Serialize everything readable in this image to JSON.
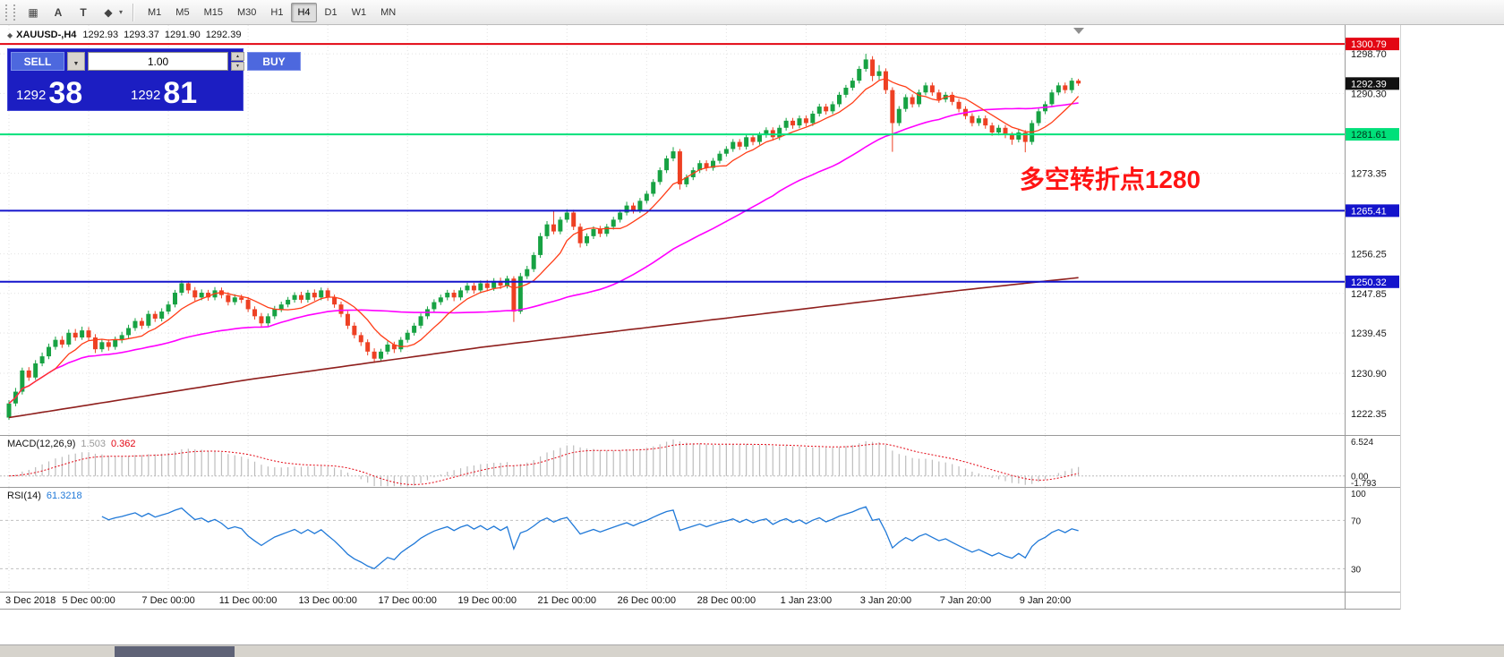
{
  "toolbar": {
    "tools": [
      {
        "name": "grid-icon",
        "glyph": "▦"
      },
      {
        "name": "text-a-icon",
        "glyph": "A"
      },
      {
        "name": "text-t-icon",
        "glyph": "T"
      },
      {
        "name": "shapes-icon",
        "glyph": "◆"
      }
    ],
    "shapes_caret": "▾",
    "timeframes": [
      "M1",
      "M5",
      "M15",
      "M30",
      "H1",
      "H4",
      "D1",
      "W1",
      "MN"
    ],
    "active_timeframe": "H4"
  },
  "chart_header": {
    "symbol_period": "XAUUSD-,H4",
    "open": "1292.93",
    "high": "1293.37",
    "low": "1291.90",
    "close": "1292.39"
  },
  "trade_panel": {
    "sell_label": "SELL",
    "buy_label": "BUY",
    "volume": "1.00",
    "sell_big_figure": "1292",
    "sell_pips": "38",
    "buy_big_figure": "1292",
    "buy_pips": "81",
    "panel_color": "#1c1ec2",
    "button_color": "#4d68de"
  },
  "indicators": {
    "macd": {
      "name": "MACD(12,26,9)",
      "value_main": "1.503",
      "value_signal": "0.362",
      "axis": [
        "6.524",
        "0.00",
        "-1.793"
      ]
    },
    "rsi": {
      "name": "RSI(14)",
      "value": "61.3218",
      "axis": [
        "100",
        "70",
        "30"
      ]
    }
  },
  "chart_data": {
    "type": "candlestick",
    "symbol": "XAUUSD-",
    "timeframe": "H4",
    "title": "XAUUSD-,H4 1292.93 1293.37 1291.90 1292.39",
    "y_axis": {
      "max": 1304.8,
      "min": 1217.8,
      "ticks": [
        1298.7,
        1290.3,
        1273.35,
        1256.25,
        1247.85,
        1239.45,
        1230.9,
        1222.35
      ]
    },
    "x_labels": [
      "3 Dec 2018",
      "5 Dec 00:00",
      "7 Dec 00:00",
      "11 Dec 00:00",
      "13 Dec 00:00",
      "17 Dec 00:00",
      "19 Dec 00:00",
      "21 Dec 00:00",
      "26 Dec 00:00",
      "28 Dec 00:00",
      "1 Jan 23:00",
      "3 Jan 20:00",
      "7 Jan 20:00",
      "9 Jan 20:00"
    ],
    "x_label_step": 12,
    "current_price": 1292.39,
    "levels": [
      {
        "price": 1300.79,
        "label": "1300.79",
        "color": "#e30613",
        "text_color": "#ffffff"
      },
      {
        "price": 1281.61,
        "label": "1281.61",
        "color": "#00e07a",
        "text_color": "#00331a"
      },
      {
        "price": 1265.41,
        "label": "1265.41",
        "color": "#1414cc",
        "text_color": "#ffffff"
      },
      {
        "price": 1250.32,
        "label": "1250.32",
        "color": "#1414cc",
        "text_color": "#ffffff"
      }
    ],
    "annotation": {
      "text": "多空转折点1280",
      "color": "#ff1414"
    },
    "colors": {
      "up": "#17a243",
      "down": "#ee4023",
      "ma_fast": "#ff3d17",
      "ma_mid": "#ff00ff",
      "ma_slow": "#8f1f1d",
      "macd_hist": "#bdbdbd",
      "macd_signal": "#e30613",
      "rsi": "#2079d8",
      "grid": "#e2e2e2"
    },
    "ma": {
      "fast_period": 8,
      "mid_period": 40,
      "slow_anchors": [
        1221.5,
        1225.5,
        1229.5,
        1233.0,
        1236.5,
        1239.5,
        1242.5,
        1245.5,
        1248.5,
        1251.2
      ]
    },
    "macd": {
      "fast": 12,
      "slow": 26,
      "signal": 9,
      "scale_max": 6.524,
      "scale_min": -1.793
    },
    "rsi": {
      "period": 14,
      "levels": [
        70,
        30
      ],
      "scale_max": 97,
      "scale_min": 11
    },
    "candles": [
      [
        1221.5,
        1225.2,
        1221.0,
        1224.5
      ],
      [
        1224.5,
        1227.8,
        1223.9,
        1227.0
      ],
      [
        1227.0,
        1232.1,
        1226.4,
        1231.5
      ],
      [
        1231.5,
        1232.2,
        1229.3,
        1230.0
      ],
      [
        1230.0,
        1233.7,
        1229.5,
        1233.0
      ],
      [
        1233.0,
        1235.3,
        1232.4,
        1234.5
      ],
      [
        1234.5,
        1237.2,
        1233.9,
        1236.5
      ],
      [
        1236.5,
        1238.7,
        1235.9,
        1238.0
      ],
      [
        1238.0,
        1238.8,
        1236.3,
        1237.0
      ],
      [
        1237.0,
        1240.2,
        1236.5,
        1239.5
      ],
      [
        1239.5,
        1240.3,
        1237.8,
        1238.5
      ],
      [
        1238.5,
        1240.8,
        1238.0,
        1240.0
      ],
      [
        1240.0,
        1240.7,
        1237.8,
        1238.5
      ],
      [
        1238.5,
        1239.2,
        1235.2,
        1236.0
      ],
      [
        1236.0,
        1238.2,
        1235.4,
        1237.5
      ],
      [
        1237.5,
        1238.1,
        1235.7,
        1236.5
      ],
      [
        1236.5,
        1238.7,
        1235.9,
        1238.0
      ],
      [
        1238.0,
        1239.7,
        1237.3,
        1239.0
      ],
      [
        1239.0,
        1241.2,
        1238.4,
        1240.5
      ],
      [
        1240.5,
        1242.6,
        1239.9,
        1242.0
      ],
      [
        1242.0,
        1242.7,
        1240.3,
        1241.0
      ],
      [
        1241.0,
        1244.2,
        1240.5,
        1243.5
      ],
      [
        1243.5,
        1244.1,
        1241.8,
        1242.5
      ],
      [
        1242.5,
        1244.7,
        1241.9,
        1244.0
      ],
      [
        1244.0,
        1246.2,
        1243.4,
        1245.5
      ],
      [
        1245.5,
        1248.6,
        1244.9,
        1248.0
      ],
      [
        1248.0,
        1250.6,
        1247.4,
        1250.0
      ],
      [
        1250.0,
        1250.5,
        1247.8,
        1248.5
      ],
      [
        1248.5,
        1249.2,
        1246.3,
        1247.0
      ],
      [
        1247.0,
        1248.7,
        1246.4,
        1248.0
      ],
      [
        1248.0,
        1248.6,
        1246.3,
        1247.0
      ],
      [
        1247.0,
        1249.2,
        1246.4,
        1248.5
      ],
      [
        1248.5,
        1249.1,
        1246.8,
        1247.5
      ],
      [
        1247.5,
        1248.1,
        1245.3,
        1246.0
      ],
      [
        1246.0,
        1247.7,
        1245.4,
        1247.0
      ],
      [
        1247.0,
        1247.6,
        1245.8,
        1246.5
      ],
      [
        1246.5,
        1247.1,
        1243.9,
        1244.5
      ],
      [
        1244.5,
        1245.1,
        1242.3,
        1243.0
      ],
      [
        1243.0,
        1243.7,
        1240.8,
        1241.5
      ],
      [
        1241.5,
        1243.6,
        1240.9,
        1243.0
      ],
      [
        1243.0,
        1245.2,
        1242.4,
        1244.5
      ],
      [
        1244.5,
        1246.1,
        1243.9,
        1245.5
      ],
      [
        1245.5,
        1247.1,
        1244.9,
        1246.5
      ],
      [
        1246.5,
        1248.1,
        1245.9,
        1247.5
      ],
      [
        1247.5,
        1248.2,
        1245.8,
        1246.5
      ],
      [
        1246.5,
        1248.6,
        1245.9,
        1248.0
      ],
      [
        1248.0,
        1248.7,
        1246.3,
        1247.0
      ],
      [
        1247.0,
        1249.1,
        1246.4,
        1248.5
      ],
      [
        1248.5,
        1249.0,
        1246.3,
        1247.0
      ],
      [
        1247.0,
        1247.6,
        1244.8,
        1245.5
      ],
      [
        1245.5,
        1246.1,
        1242.8,
        1243.5
      ],
      [
        1243.5,
        1244.1,
        1240.3,
        1241.0
      ],
      [
        1241.0,
        1241.7,
        1238.3,
        1239.0
      ],
      [
        1239.0,
        1239.6,
        1236.7,
        1237.5
      ],
      [
        1237.5,
        1238.1,
        1234.7,
        1235.5
      ],
      [
        1235.5,
        1236.2,
        1233.1,
        1234.0
      ],
      [
        1234.0,
        1236.1,
        1233.4,
        1235.5
      ],
      [
        1235.5,
        1237.7,
        1234.9,
        1237.0
      ],
      [
        1237.0,
        1237.6,
        1235.2,
        1236.0
      ],
      [
        1236.0,
        1238.6,
        1235.4,
        1238.0
      ],
      [
        1238.0,
        1240.1,
        1237.4,
        1239.5
      ],
      [
        1239.5,
        1241.6,
        1238.9,
        1241.0
      ],
      [
        1241.0,
        1243.6,
        1240.4,
        1243.0
      ],
      [
        1243.0,
        1245.1,
        1242.4,
        1244.5
      ],
      [
        1244.5,
        1246.6,
        1243.9,
        1246.0
      ],
      [
        1246.0,
        1247.6,
        1245.4,
        1247.0
      ],
      [
        1247.0,
        1248.6,
        1246.4,
        1248.0
      ],
      [
        1248.0,
        1248.6,
        1246.2,
        1247.0
      ],
      [
        1247.0,
        1249.1,
        1246.4,
        1248.5
      ],
      [
        1248.5,
        1250.1,
        1247.9,
        1249.5
      ],
      [
        1249.5,
        1250.1,
        1247.8,
        1248.5
      ],
      [
        1248.5,
        1250.6,
        1247.9,
        1250.0
      ],
      [
        1250.0,
        1250.7,
        1248.3,
        1249.0
      ],
      [
        1249.0,
        1251.1,
        1248.4,
        1250.5
      ],
      [
        1250.5,
        1251.2,
        1248.8,
        1249.5
      ],
      [
        1249.5,
        1251.6,
        1248.9,
        1251.0
      ],
      [
        1251.0,
        1251.5,
        1241.8,
        1244.0
      ],
      [
        1244.0,
        1252.2,
        1243.5,
        1251.5
      ],
      [
        1251.5,
        1253.7,
        1250.9,
        1253.0
      ],
      [
        1253.0,
        1256.6,
        1252.4,
        1256.0
      ],
      [
        1256.0,
        1260.7,
        1255.4,
        1260.0
      ],
      [
        1260.0,
        1263.2,
        1259.4,
        1262.5
      ],
      [
        1262.5,
        1265.3,
        1260.4,
        1261.0
      ],
      [
        1261.0,
        1264.1,
        1260.4,
        1263.5
      ],
      [
        1263.5,
        1265.7,
        1262.9,
        1265.0
      ],
      [
        1265.0,
        1265.6,
        1261.3,
        1262.0
      ],
      [
        1262.0,
        1262.7,
        1257.6,
        1258.5
      ],
      [
        1258.5,
        1260.6,
        1257.9,
        1260.0
      ],
      [
        1260.0,
        1262.1,
        1259.4,
        1261.5
      ],
      [
        1261.5,
        1262.2,
        1259.8,
        1260.5
      ],
      [
        1260.5,
        1262.6,
        1259.9,
        1262.0
      ],
      [
        1262.0,
        1264.1,
        1261.4,
        1263.5
      ],
      [
        1263.5,
        1265.6,
        1262.9,
        1265.0
      ],
      [
        1265.0,
        1267.3,
        1264.4,
        1266.5
      ],
      [
        1266.5,
        1267.1,
        1264.8,
        1265.5
      ],
      [
        1265.5,
        1268.1,
        1264.9,
        1267.5
      ],
      [
        1267.5,
        1269.6,
        1266.9,
        1269.0
      ],
      [
        1269.0,
        1272.1,
        1268.4,
        1271.5
      ],
      [
        1271.5,
        1274.6,
        1270.9,
        1274.0
      ],
      [
        1274.0,
        1277.1,
        1273.4,
        1276.5
      ],
      [
        1276.5,
        1278.9,
        1275.9,
        1278.0
      ],
      [
        1278.0,
        1278.5,
        1269.9,
        1271.0
      ],
      [
        1271.0,
        1273.1,
        1270.4,
        1272.5
      ],
      [
        1272.5,
        1274.6,
        1271.9,
        1274.0
      ],
      [
        1274.0,
        1276.1,
        1273.4,
        1275.5
      ],
      [
        1275.5,
        1276.1,
        1273.8,
        1274.5
      ],
      [
        1274.5,
        1276.6,
        1273.9,
        1276.0
      ],
      [
        1276.0,
        1278.1,
        1275.4,
        1277.5
      ],
      [
        1277.5,
        1279.1,
        1276.9,
        1278.5
      ],
      [
        1278.5,
        1280.6,
        1277.9,
        1280.0
      ],
      [
        1280.0,
        1280.6,
        1278.3,
        1279.0
      ],
      [
        1279.0,
        1281.6,
        1278.4,
        1281.0
      ],
      [
        1281.0,
        1281.6,
        1279.3,
        1280.0
      ],
      [
        1280.0,
        1282.1,
        1279.4,
        1281.5
      ],
      [
        1281.5,
        1283.1,
        1280.9,
        1282.5
      ],
      [
        1282.5,
        1283.1,
        1280.3,
        1281.0
      ],
      [
        1281.0,
        1283.6,
        1280.4,
        1283.0
      ],
      [
        1283.0,
        1285.1,
        1282.4,
        1284.5
      ],
      [
        1284.5,
        1285.1,
        1282.8,
        1283.5
      ],
      [
        1283.5,
        1285.6,
        1282.9,
        1285.0
      ],
      [
        1285.0,
        1285.6,
        1283.3,
        1284.0
      ],
      [
        1284.0,
        1286.6,
        1283.4,
        1286.0
      ],
      [
        1286.0,
        1288.1,
        1285.4,
        1287.5
      ],
      [
        1287.5,
        1288.1,
        1285.8,
        1286.5
      ],
      [
        1286.5,
        1288.6,
        1285.9,
        1288.0
      ],
      [
        1288.0,
        1290.6,
        1287.4,
        1290.0
      ],
      [
        1290.0,
        1292.1,
        1289.4,
        1291.5
      ],
      [
        1291.5,
        1293.6,
        1290.9,
        1293.0
      ],
      [
        1293.0,
        1296.1,
        1292.4,
        1295.5
      ],
      [
        1295.5,
        1298.7,
        1294.9,
        1297.5
      ],
      [
        1297.5,
        1298.2,
        1292.9,
        1294.0
      ],
      [
        1294.0,
        1296.3,
        1293.2,
        1295.0
      ],
      [
        1295.0,
        1295.6,
        1290.2,
        1291.0
      ],
      [
        1291.0,
        1291.6,
        1277.9,
        1284.0
      ],
      [
        1284.0,
        1287.6,
        1283.4,
        1287.0
      ],
      [
        1287.0,
        1290.1,
        1286.4,
        1289.5
      ],
      [
        1289.5,
        1290.1,
        1287.3,
        1288.0
      ],
      [
        1288.0,
        1291.1,
        1287.4,
        1290.5
      ],
      [
        1290.5,
        1292.6,
        1289.9,
        1292.0
      ],
      [
        1292.0,
        1292.6,
        1289.8,
        1290.5
      ],
      [
        1290.5,
        1291.1,
        1288.3,
        1289.0
      ],
      [
        1289.0,
        1290.6,
        1288.4,
        1290.0
      ],
      [
        1290.0,
        1290.6,
        1287.8,
        1288.5
      ],
      [
        1288.5,
        1289.1,
        1286.3,
        1287.0
      ],
      [
        1287.0,
        1287.6,
        1284.8,
        1285.5
      ],
      [
        1285.5,
        1286.1,
        1283.3,
        1284.0
      ],
      [
        1284.0,
        1285.6,
        1283.4,
        1285.0
      ],
      [
        1285.0,
        1285.6,
        1282.8,
        1283.5
      ],
      [
        1283.5,
        1284.1,
        1281.3,
        1282.0
      ],
      [
        1282.0,
        1283.6,
        1281.4,
        1283.0
      ],
      [
        1283.0,
        1283.6,
        1280.8,
        1281.5
      ],
      [
        1281.5,
        1282.1,
        1279.4,
        1280.5
      ],
      [
        1280.5,
        1282.6,
        1279.9,
        1282.0
      ],
      [
        1282.0,
        1282.5,
        1277.8,
        1280.0
      ],
      [
        1280.0,
        1284.6,
        1279.4,
        1284.0
      ],
      [
        1284.0,
        1287.1,
        1283.4,
        1286.5
      ],
      [
        1286.5,
        1288.6,
        1285.9,
        1288.0
      ],
      [
        1288.0,
        1291.1,
        1287.4,
        1290.5
      ],
      [
        1290.5,
        1292.6,
        1289.9,
        1292.0
      ],
      [
        1292.0,
        1292.6,
        1290.3,
        1291.0
      ],
      [
        1291.0,
        1293.6,
        1290.4,
        1293.0
      ],
      [
        1293.0,
        1293.4,
        1291.9,
        1292.4
      ]
    ]
  }
}
